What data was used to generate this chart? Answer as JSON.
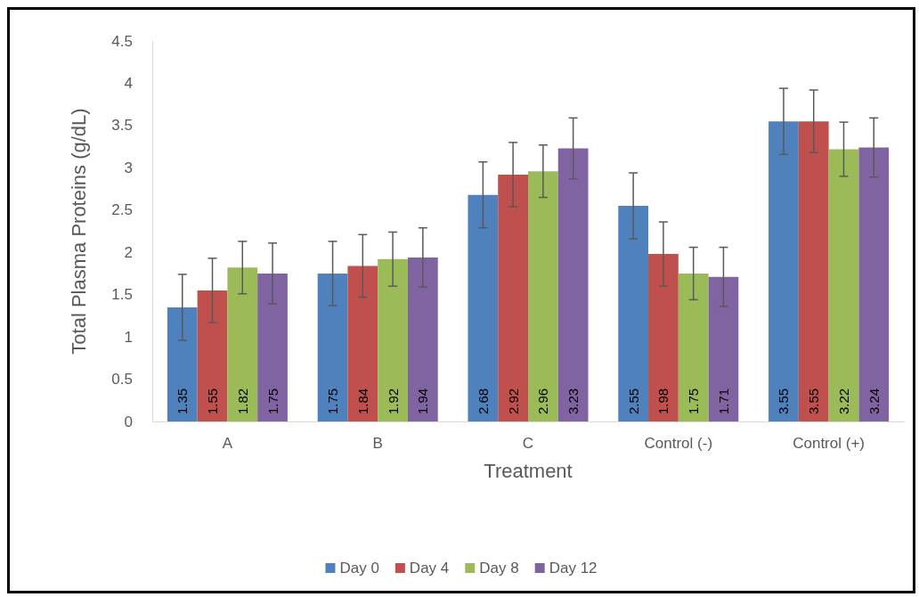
{
  "chart_data": {
    "type": "bar",
    "xlabel": "Treatment",
    "ylabel": "Total Plasma Proteins (g/dL)",
    "categories": [
      "A",
      "B",
      "C",
      "Control (-)",
      "Control (+)"
    ],
    "series": [
      {
        "name": "Day 0",
        "color": "#4f81bd",
        "values": [
          1.35,
          1.75,
          2.68,
          2.55,
          3.55
        ],
        "errors": [
          0.39,
          0.38,
          0.39,
          0.39,
          0.39
        ]
      },
      {
        "name": "Day 4",
        "color": "#c0504d",
        "values": [
          1.55,
          1.84,
          2.92,
          1.98,
          3.55
        ],
        "errors": [
          0.38,
          0.37,
          0.38,
          0.38,
          0.37
        ]
      },
      {
        "name": "Day 8",
        "color": "#9bbb59",
        "values": [
          1.82,
          1.92,
          2.96,
          1.75,
          3.22
        ],
        "errors": [
          0.31,
          0.32,
          0.31,
          0.31,
          0.32
        ]
      },
      {
        "name": "Day 12",
        "color": "#8064a2",
        "values": [
          1.75,
          1.94,
          3.23,
          1.71,
          3.24
        ],
        "errors": [
          0.36,
          0.35,
          0.36,
          0.35,
          0.35
        ]
      }
    ],
    "ylim": [
      0,
      4.5
    ],
    "yticks": [
      0,
      0.5,
      1,
      1.5,
      2,
      2.5,
      3,
      3.5,
      4,
      4.5
    ],
    "grid": false,
    "legend": "bottom",
    "data_labels": true
  }
}
